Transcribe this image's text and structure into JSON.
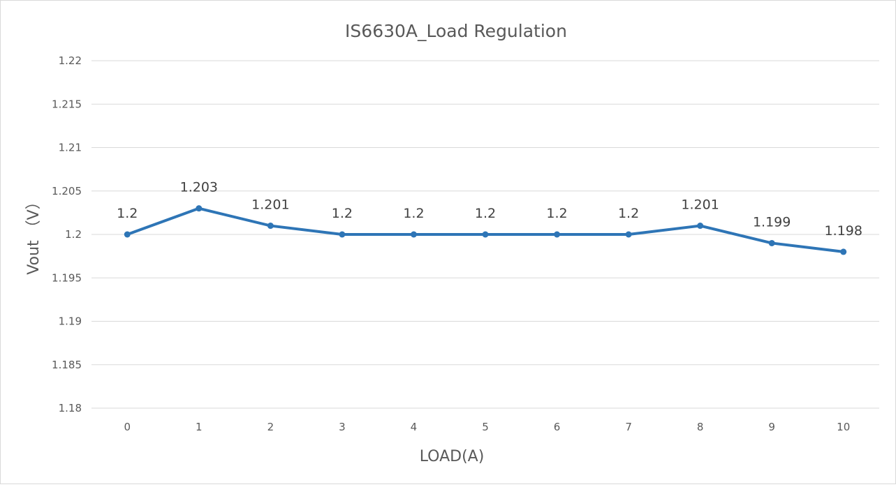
{
  "chart_data": {
    "type": "line",
    "title": "IS6630A_Load Regulation",
    "xlabel": "LOAD(A)",
    "ylabel": "Vout （V）",
    "categories": [
      "0",
      "1",
      "2",
      "3",
      "4",
      "5",
      "6",
      "7",
      "8",
      "9",
      "10"
    ],
    "series": [
      {
        "values": [
          1.2,
          1.203,
          1.201,
          1.2,
          1.2,
          1.2,
          1.2,
          1.2,
          1.201,
          1.199,
          1.198
        ],
        "labels": [
          "1.2",
          "1.203",
          "1.201",
          "1.2",
          "1.2",
          "1.2",
          "1.2",
          "1.2",
          "1.201",
          "1.199",
          "1.198"
        ],
        "color": "#2e75b6"
      }
    ],
    "yticks": [
      "1.18",
      "1.185",
      "1.19",
      "1.195",
      "1.2",
      "1.205",
      "1.21",
      "1.215",
      "1.22"
    ],
    "ylim": [
      1.18,
      1.22
    ],
    "grid": true,
    "legend": "none"
  }
}
